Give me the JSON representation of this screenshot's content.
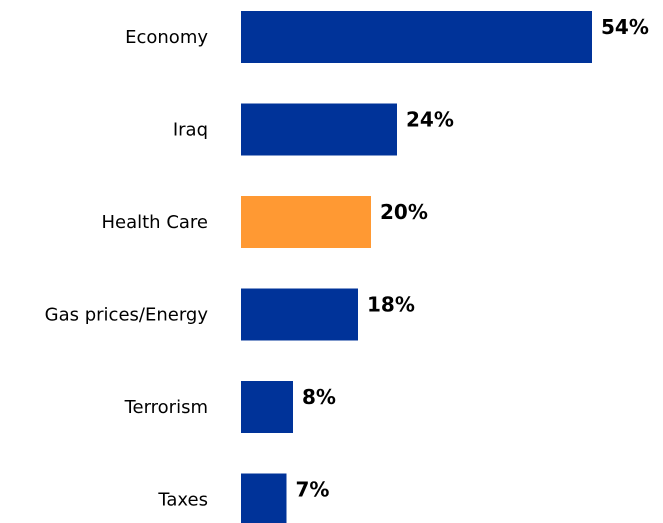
{
  "chart_data": {
    "type": "bar",
    "orientation": "horizontal",
    "categories": [
      "Economy",
      "Iraq",
      "Health Care",
      "Gas prices/Energy",
      "Terrorism",
      "Taxes"
    ],
    "values": [
      54,
      24,
      20,
      18,
      8,
      7
    ],
    "value_labels": [
      "54%",
      "24%",
      "20%",
      "18%",
      "8%",
      "7%"
    ],
    "unit": "%",
    "xlim": [
      0,
      54
    ],
    "grid": false,
    "legend": "none",
    "colors": {
      "default_bar": "#003399",
      "highlight_bar": "#FF9933"
    },
    "highlight_category": "Health Care"
  }
}
